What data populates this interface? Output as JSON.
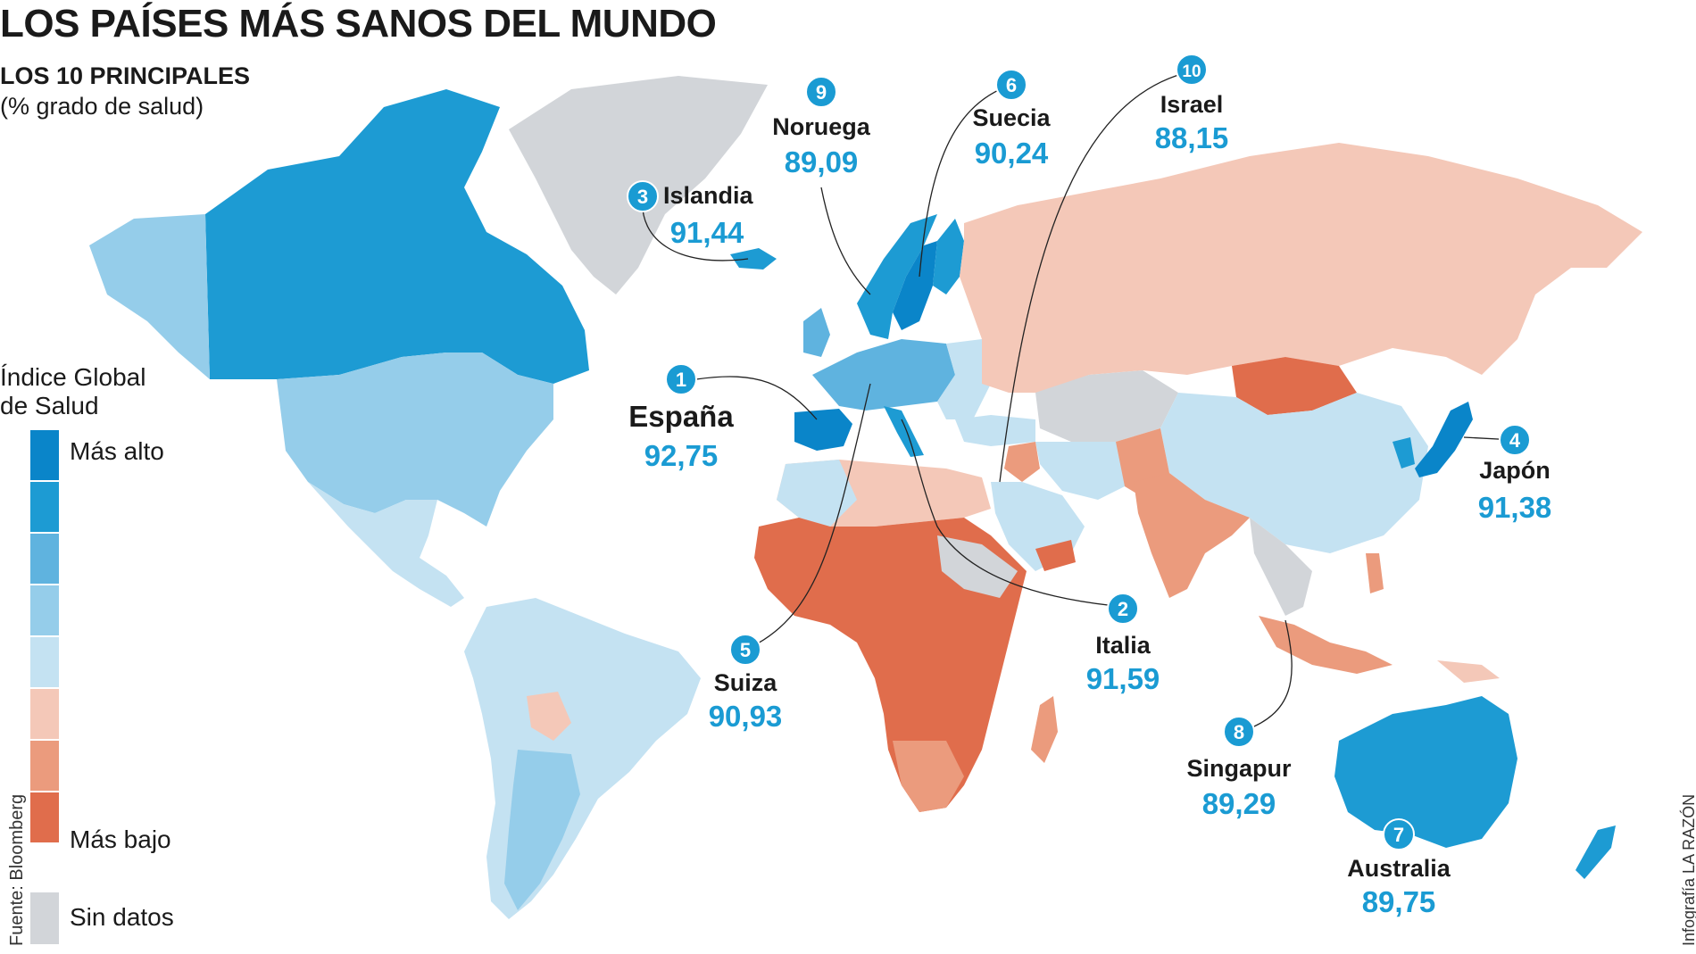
{
  "header": {
    "title": "LOS PAÍSES MÁS SANOS DEL MUNDO",
    "subtitle": "LOS 10 PRINCIPALES",
    "unit": "(% grado de salud)"
  },
  "legend": {
    "title_line1": "Índice Global",
    "title_line2": "de Salud",
    "high_label": "Más alto",
    "low_label": "Más bajo",
    "nodata_label": "Sin datos",
    "scale_colors": [
      "#0a85c9",
      "#1d9bd3",
      "#5fb3df",
      "#95cdea",
      "#c4e2f2",
      "#f4c8b8",
      "#eb9b7d",
      "#e06d4c"
    ],
    "nodata_color": "#d2d5d9"
  },
  "ranking": [
    {
      "rank": "1",
      "country": "España",
      "score": "92,75"
    },
    {
      "rank": "2",
      "country": "Italia",
      "score": "91,59"
    },
    {
      "rank": "3",
      "country": "Islandia",
      "score": "91,44"
    },
    {
      "rank": "4",
      "country": "Japón",
      "score": "91,38"
    },
    {
      "rank": "5",
      "country": "Suiza",
      "score": "90,93"
    },
    {
      "rank": "6",
      "country": "Suecia",
      "score": "90,24"
    },
    {
      "rank": "7",
      "country": "Australia",
      "score": "89,75"
    },
    {
      "rank": "8",
      "country": "Singapur",
      "score": "89,29"
    },
    {
      "rank": "9",
      "country": "Noruega",
      "score": "89,09"
    },
    {
      "rank": "10",
      "country": "Israel",
      "score": "88,15"
    }
  ],
  "footer": {
    "source": "Fuente: Bloomberg",
    "credit": "Infografía LA RAZÓN"
  }
}
